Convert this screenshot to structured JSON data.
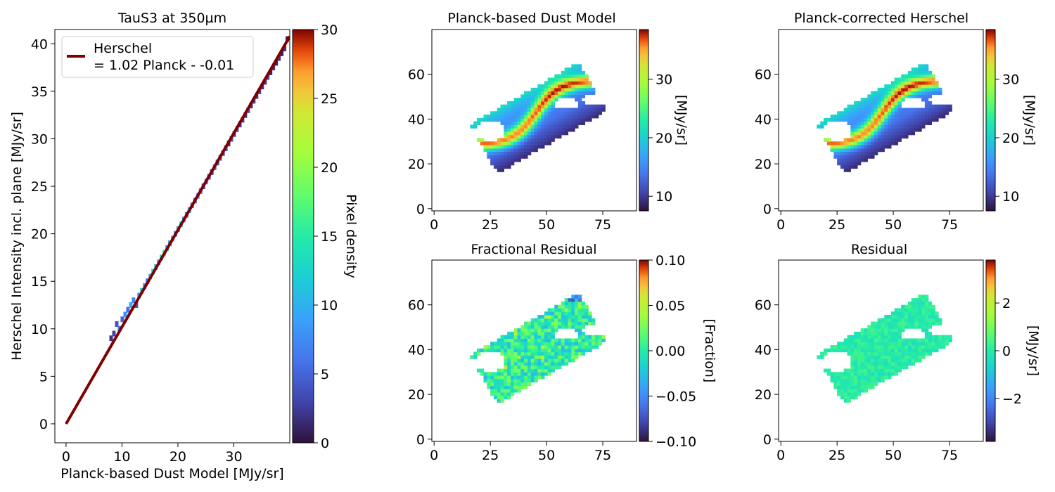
{
  "chart_data": [
    {
      "type": "heatmap",
      "subtype": "2d-histogram-scatter",
      "title": "TauS3 at 350µm",
      "xlabel": "Planck-based Dust Model [MJy/sr]",
      "ylabel": "Herschel Intensity incl. plane [MJy/sr]",
      "xlim": [
        -2,
        40
      ],
      "ylim": [
        -2,
        41.5
      ],
      "xticks": [
        0,
        10,
        20,
        30
      ],
      "yticks": [
        0,
        5,
        10,
        15,
        20,
        25,
        30,
        35,
        40
      ],
      "colorbar": {
        "label": "Pixel density",
        "range": [
          0,
          30
        ],
        "ticks": [
          0,
          5,
          10,
          15,
          20,
          25,
          30
        ],
        "colormap": "turbo"
      },
      "fit_line": {
        "slope": 1.02,
        "intercept": -0.01,
        "x_range": [
          0,
          40
        ],
        "color": "#800000"
      },
      "legend": {
        "placement": "top-left",
        "lines": [
          "Herschel",
          "= 1.02 Planck - -0.01"
        ]
      },
      "density_points": [
        [
          8,
          9,
          2
        ],
        [
          8.5,
          9.5,
          3
        ],
        [
          9,
          10.5,
          4
        ],
        [
          9.5,
          10,
          6
        ],
        [
          10,
          11,
          5
        ],
        [
          10.5,
          11.5,
          8
        ],
        [
          11,
          12,
          6
        ],
        [
          11.5,
          12.5,
          10
        ],
        [
          12,
          13,
          7
        ],
        [
          12.5,
          12.5,
          4
        ],
        [
          13,
          13.5,
          9
        ],
        [
          13.5,
          14,
          12
        ],
        [
          14,
          14.5,
          8
        ],
        [
          14.5,
          15,
          6
        ],
        [
          15,
          15.5,
          10
        ],
        [
          15.5,
          16,
          14
        ],
        [
          16,
          16.5,
          11
        ],
        [
          16.5,
          17,
          9
        ],
        [
          17,
          17.5,
          12
        ],
        [
          17.5,
          18,
          15
        ],
        [
          18,
          18.5,
          10
        ],
        [
          18.5,
          19,
          8
        ],
        [
          19,
          19.5,
          11
        ],
        [
          19.5,
          20,
          7
        ],
        [
          20,
          20.5,
          9
        ],
        [
          20.5,
          21,
          13
        ],
        [
          21,
          21.5,
          8
        ],
        [
          21.5,
          22,
          6
        ],
        [
          22,
          22.5,
          10
        ],
        [
          22.5,
          23,
          7
        ],
        [
          23,
          23.5,
          5
        ],
        [
          23.5,
          24,
          9
        ],
        [
          24,
          24.5,
          6
        ],
        [
          24.5,
          25,
          4
        ],
        [
          25,
          25.5,
          7
        ],
        [
          25.5,
          26,
          5
        ],
        [
          26,
          26.5,
          3
        ],
        [
          26.5,
          27,
          6
        ],
        [
          27,
          27.5,
          4
        ],
        [
          27.5,
          28,
          5
        ],
        [
          28,
          28.5,
          3
        ],
        [
          28.5,
          29,
          4
        ],
        [
          29,
          29.5,
          2
        ],
        [
          29.5,
          30,
          4
        ],
        [
          30,
          30.5,
          3
        ],
        [
          30.5,
          31,
          5
        ],
        [
          31,
          31.5,
          2
        ],
        [
          31.5,
          32,
          3
        ],
        [
          32,
          32.5,
          2
        ],
        [
          32.5,
          33,
          4
        ],
        [
          33,
          33.5,
          2
        ],
        [
          33.5,
          34,
          3
        ],
        [
          34,
          34.5,
          2
        ],
        [
          34.5,
          35,
          3
        ],
        [
          35,
          35.5,
          2
        ],
        [
          35.5,
          36,
          2
        ],
        [
          36,
          36.5,
          3
        ],
        [
          36.5,
          37,
          1
        ],
        [
          37,
          37.5,
          2
        ],
        [
          37.5,
          38,
          1
        ],
        [
          38,
          38.5,
          2
        ],
        [
          38.5,
          39,
          1
        ],
        [
          39,
          39.5,
          2
        ],
        [
          39.5,
          40.5,
          1
        ]
      ]
    },
    {
      "type": "heatmap",
      "title": "Planck-based Dust Model",
      "xlim": [
        -1,
        90
      ],
      "ylim": [
        -1,
        80
      ],
      "xticks": [
        0,
        25,
        50,
        75
      ],
      "yticks": [
        0,
        20,
        40,
        60
      ],
      "colorbar": {
        "label": "[MJy/sr]",
        "range": [
          7.5,
          38.5
        ],
        "ticks": [
          10,
          20,
          30
        ],
        "colormap": "turbo"
      },
      "region": "tilted-rectangle-map"
    },
    {
      "type": "heatmap",
      "title": "Planck-corrected Herschel",
      "xlim": [
        -1,
        90
      ],
      "ylim": [
        -1,
        80
      ],
      "xticks": [
        0,
        25,
        50,
        75
      ],
      "yticks": [
        0,
        20,
        40,
        60
      ],
      "colorbar": {
        "label": "[MJy/sr]",
        "range": [
          7.5,
          38.5
        ],
        "ticks": [
          10,
          20,
          30
        ],
        "colormap": "turbo"
      },
      "region": "tilted-rectangle-map"
    },
    {
      "type": "heatmap",
      "title": "Fractional Residual",
      "xlim": [
        -1,
        90
      ],
      "ylim": [
        -1,
        80
      ],
      "xticks": [
        0,
        25,
        50,
        75
      ],
      "yticks": [
        0,
        20,
        40,
        60
      ],
      "colorbar": {
        "label": "[Fraction]",
        "range": [
          -0.1,
          0.1
        ],
        "ticks": [
          "-0.10",
          "-0.05",
          "0.00",
          "0.05",
          "0.10"
        ],
        "tick_values": [
          -0.1,
          -0.05,
          0,
          0.05,
          0.1
        ],
        "colormap": "turbo"
      },
      "region": "tilted-rectangle-map"
    },
    {
      "type": "heatmap",
      "title": "Residual",
      "xlim": [
        -1,
        90
      ],
      "ylim": [
        -1,
        80
      ],
      "xticks": [
        0,
        25,
        50,
        75
      ],
      "yticks": [
        0,
        20,
        40,
        60
      ],
      "colorbar": {
        "label": "[MJy/sr]",
        "range": [
          -3.8,
          3.8
        ],
        "ticks": [
          "-2",
          "0",
          "2"
        ],
        "tick_values": [
          -2,
          0,
          2
        ],
        "colormap": "turbo"
      },
      "region": "tilted-rectangle-map"
    }
  ]
}
